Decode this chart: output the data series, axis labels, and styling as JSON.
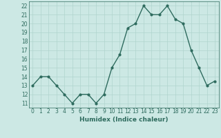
{
  "x": [
    0,
    1,
    2,
    3,
    4,
    5,
    6,
    7,
    8,
    9,
    10,
    11,
    12,
    13,
    14,
    15,
    16,
    17,
    18,
    19,
    20,
    21,
    22,
    23
  ],
  "y": [
    13,
    14,
    14,
    13,
    12,
    11,
    12,
    12,
    11,
    12,
    15,
    16.5,
    19.5,
    20,
    22,
    21,
    21,
    22,
    20.5,
    20,
    17,
    15,
    13,
    13.5
  ],
  "line_color": "#2e6b5e",
  "marker": "o",
  "marker_size": 2,
  "linewidth": 1.0,
  "bg_color": "#cce8e4",
  "grid_color": "#b0d4ce",
  "xlabel": "Humidex (Indice chaleur)",
  "ylabel": "",
  "ylim": [
    10.5,
    22.5
  ],
  "xlim": [
    -0.5,
    23.5
  ],
  "yticks": [
    11,
    12,
    13,
    14,
    15,
    16,
    17,
    18,
    19,
    20,
    21,
    22
  ],
  "xticks": [
    0,
    1,
    2,
    3,
    4,
    5,
    6,
    7,
    8,
    9,
    10,
    11,
    12,
    13,
    14,
    15,
    16,
    17,
    18,
    19,
    20,
    21,
    22,
    23
  ],
  "tick_label_fontsize": 5.5,
  "xlabel_fontsize": 6.5,
  "tick_color": "#2e6b5e",
  "spine_color": "#2e6b5e"
}
